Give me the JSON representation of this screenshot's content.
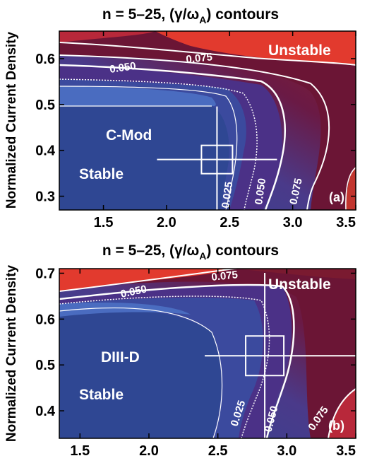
{
  "chart_data": [
    {
      "type": "contour",
      "panel": "(a)",
      "title_main": "n = 5–25, (γ/ω",
      "title_sub": "A",
      "title_tail": ") contours",
      "ylabel": "Normalized Current Density",
      "xlabel": "",
      "xlim": [
        1.15,
        3.5
      ],
      "ylim": [
        0.27,
        0.66
      ],
      "xticks": [
        "1.5",
        "2.0",
        "2.5",
        "3.0",
        "3.5"
      ],
      "xtick_values": [
        1.5,
        2.0,
        2.5,
        3.0,
        3.5
      ],
      "yticks": [
        "0.3",
        "0.4",
        "0.5",
        "0.6"
      ],
      "ytick_values": [
        0.3,
        0.4,
        0.5,
        0.6
      ],
      "contour_levels": [
        "0.025",
        "0.050",
        "0.075"
      ],
      "region_labels": {
        "unstable": "Unstable",
        "stable": "Stable"
      },
      "device_label": "C-Mod",
      "operating_point": {
        "x": 2.4,
        "y": 0.38
      },
      "colors": {
        "stable": "#2f4793",
        "unstable": "#e23a2e",
        "contour": "#ffffff"
      }
    },
    {
      "type": "contour",
      "panel": "(b)",
      "title_main": "n = 5–25, (γ/ω",
      "title_sub": "A",
      "title_tail": ") contours",
      "ylabel": "Normalized Current Density",
      "xlabel": "",
      "xlim": [
        1.35,
        3.5
      ],
      "ylim": [
        0.34,
        0.71
      ],
      "xticks": [
        "1.5",
        "2.0",
        "2.5",
        "3.0",
        "3.5"
      ],
      "xtick_values": [
        1.5,
        2.0,
        2.5,
        3.0,
        3.5
      ],
      "yticks": [
        "0.4",
        "0.5",
        "0.6",
        "0.7"
      ],
      "ytick_values": [
        0.4,
        0.5,
        0.6,
        0.7
      ],
      "contour_levels": [
        "0.025",
        "0.050",
        "0.075"
      ],
      "region_labels": {
        "unstable": "Unstable",
        "stable": "Stable"
      },
      "device_label": "DIII-D",
      "operating_point": {
        "x": 2.84,
        "y": 0.52
      },
      "colors": {
        "stable": "#2f4793",
        "unstable": "#e23a2e",
        "contour": "#ffffff"
      }
    }
  ]
}
